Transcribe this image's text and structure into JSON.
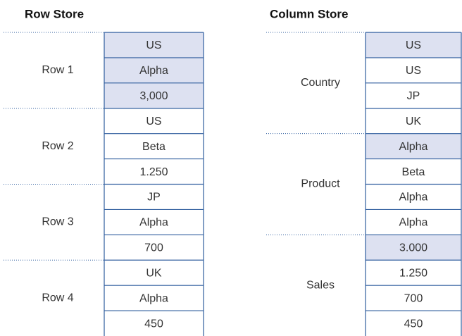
{
  "row_store": {
    "title": "Row Store",
    "groups": [
      {
        "label": "Row 1",
        "cells": [
          "US",
          "Alpha",
          "3,000"
        ]
      },
      {
        "label": "Row 2",
        "cells": [
          "US",
          "Beta",
          "1.250"
        ]
      },
      {
        "label": "Row 3",
        "cells": [
          "JP",
          "Alpha",
          "700"
        ]
      },
      {
        "label": "Row 4",
        "cells": [
          "UK",
          "Alpha",
          "450"
        ]
      }
    ]
  },
  "column_store": {
    "title": "Column Store",
    "groups": [
      {
        "label": "Country",
        "cells": [
          "US",
          "US",
          "JP",
          "UK"
        ]
      },
      {
        "label": "Product",
        "cells": [
          "Alpha",
          "Beta",
          "Alpha",
          "Alpha"
        ]
      },
      {
        "label": "Sales",
        "cells": [
          "3.000",
          "1.250",
          "700",
          "450"
        ]
      }
    ]
  }
}
